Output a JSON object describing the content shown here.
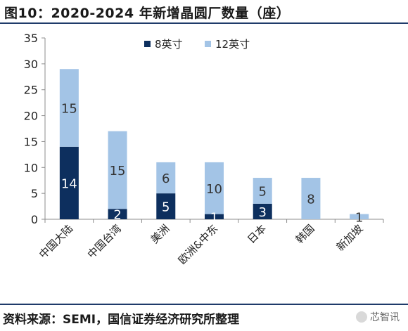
{
  "title": "图10：2020-2024 年新增晶圆厂数量（座）",
  "source": "资料来源：SEMI，国信证券经济研究所整理",
  "watermark": "芯智讯",
  "chart_data": {
    "type": "bar",
    "stacked": true,
    "categories": [
      "中国大陆",
      "中国台湾",
      "美洲",
      "欧洲&中东",
      "日本",
      "韩国",
      "新加坡"
    ],
    "series": [
      {
        "name": "8英寸",
        "color": "#0d2f5e",
        "values": [
          14,
          2,
          5,
          1,
          3,
          0,
          0
        ]
      },
      {
        "name": "12英寸",
        "color": "#a3c4e6",
        "values": [
          15,
          15,
          6,
          10,
          5,
          8,
          1
        ]
      }
    ],
    "data_labels": [
      [
        "14",
        "2",
        "5",
        "1",
        "3",
        "",
        ""
      ],
      [
        "15",
        "15",
        "6",
        "10",
        "5",
        "8",
        "1"
      ]
    ],
    "yticks": [
      "0",
      "5",
      "10",
      "15",
      "20",
      "25",
      "30",
      "35"
    ],
    "ylim": [
      0,
      35
    ],
    "legend_position": "top",
    "grid": false
  }
}
